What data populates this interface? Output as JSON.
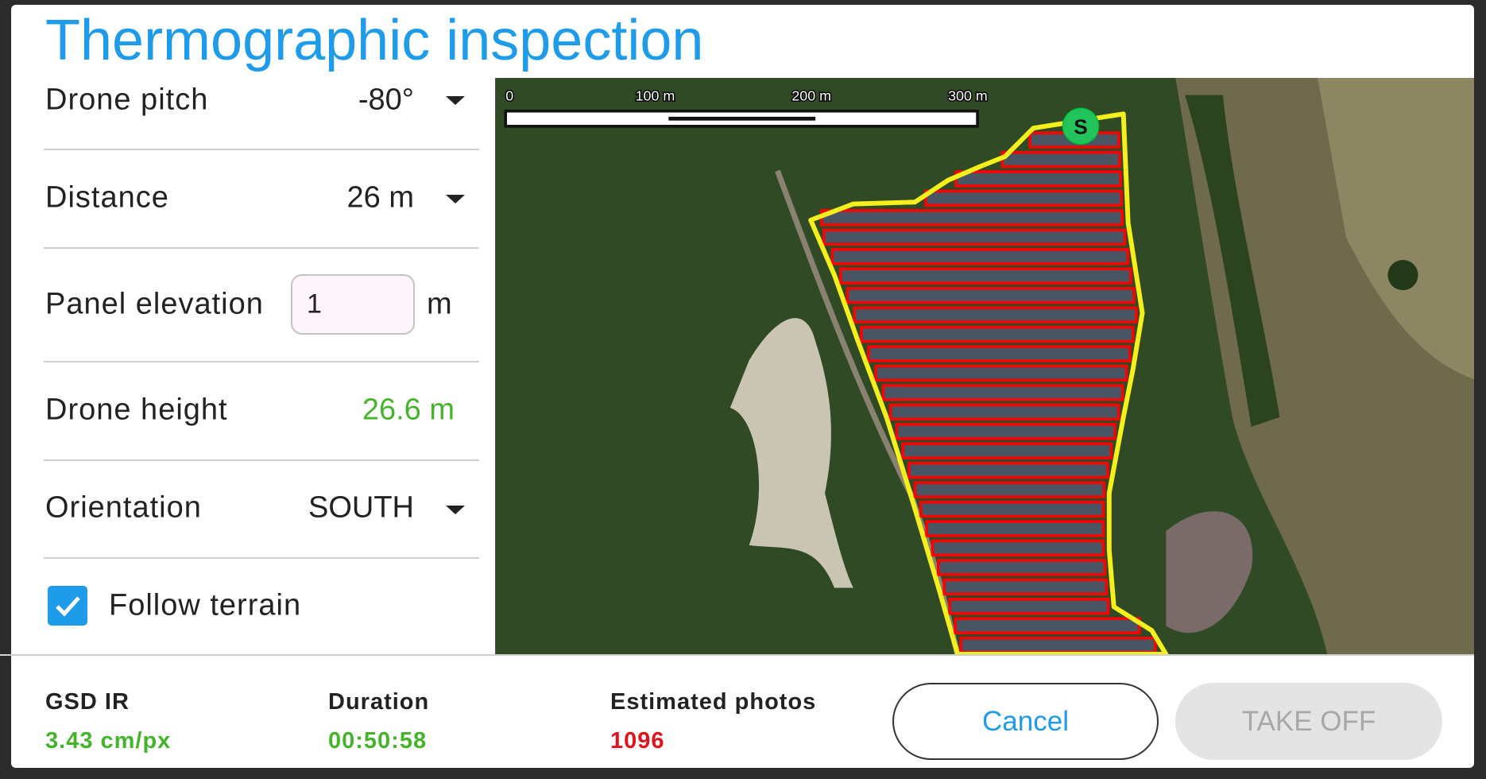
{
  "header": {
    "title": "Thermographic inspection"
  },
  "settings": {
    "drone_pitch": {
      "label": "Drone pitch",
      "value": "-80°"
    },
    "distance": {
      "label": "Distance",
      "value": "26 m"
    },
    "panel_elevation": {
      "label": "Panel elevation",
      "input": "1",
      "unit": "m"
    },
    "drone_height": {
      "label": "Drone height",
      "value": "26.6 m"
    },
    "orientation": {
      "label": "Orientation",
      "value": "SOUTH"
    },
    "follow_terrain": {
      "label": "Follow terrain",
      "checked": true
    }
  },
  "map": {
    "scale_labels": [
      "0",
      "100 m",
      "200 m",
      "300 m"
    ],
    "start_marker": "S"
  },
  "stats": [
    {
      "label": "GSD IR",
      "value": "3.43 cm/px"
    },
    {
      "label": "Duration",
      "value": "00:50:58"
    },
    {
      "label": "Estimated photos",
      "value": "1096"
    }
  ],
  "buttons": {
    "cancel": "Cancel",
    "take_off": "TAKE OFF"
  }
}
